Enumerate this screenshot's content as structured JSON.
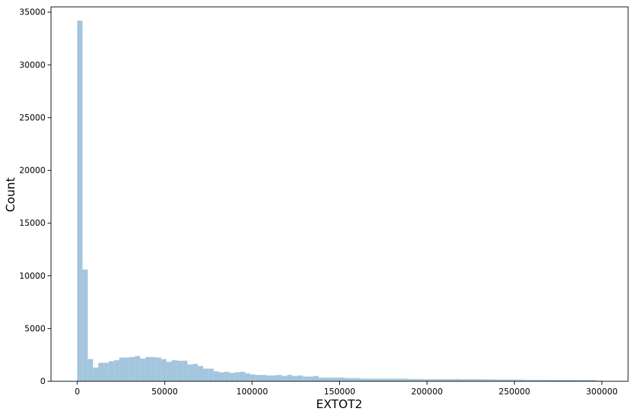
{
  "chart_data": {
    "type": "bar",
    "subtype": "histogram",
    "title": "",
    "xlabel": "EXTOT2",
    "ylabel": "Count",
    "xlim": [
      -15000,
      315000
    ],
    "ylim": [
      0,
      35500
    ],
    "bin_start": 0,
    "bin_width": 3000,
    "values": [
      34200,
      10600,
      2100,
      1300,
      1750,
      1750,
      1900,
      2000,
      2250,
      2250,
      2300,
      2400,
      2150,
      2300,
      2300,
      2250,
      2100,
      1850,
      2000,
      1950,
      1950,
      1600,
      1650,
      1450,
      1200,
      1200,
      950,
      850,
      900,
      800,
      850,
      900,
      750,
      650,
      600,
      600,
      550,
      550,
      600,
      500,
      600,
      500,
      550,
      450,
      450,
      500,
      350,
      350,
      350,
      350,
      350,
      300,
      300,
      300,
      250,
      250,
      250,
      250,
      250,
      250,
      250,
      250,
      250,
      220,
      220,
      220,
      200,
      200,
      200,
      200,
      200,
      200,
      220,
      200,
      200,
      200,
      200,
      200,
      180,
      180,
      160,
      160,
      160,
      160,
      160,
      140,
      140,
      140,
      140,
      140,
      130,
      130,
      130,
      130,
      130,
      130,
      120,
      120,
      120,
      60
    ],
    "xticks": [
      0,
      50000,
      100000,
      150000,
      200000,
      250000,
      300000
    ],
    "xtick_labels": [
      "0",
      "50000",
      "100000",
      "150000",
      "200000",
      "250000",
      "300000"
    ],
    "yticks": [
      0,
      5000,
      10000,
      15000,
      20000,
      25000,
      30000,
      35000
    ],
    "ytick_labels": [
      "0",
      "5000",
      "10000",
      "15000",
      "20000",
      "25000",
      "30000",
      "35000"
    ],
    "colors": {
      "bar": "#a3c6de",
      "axes": "#000000"
    },
    "grid": false,
    "legend": false
  }
}
